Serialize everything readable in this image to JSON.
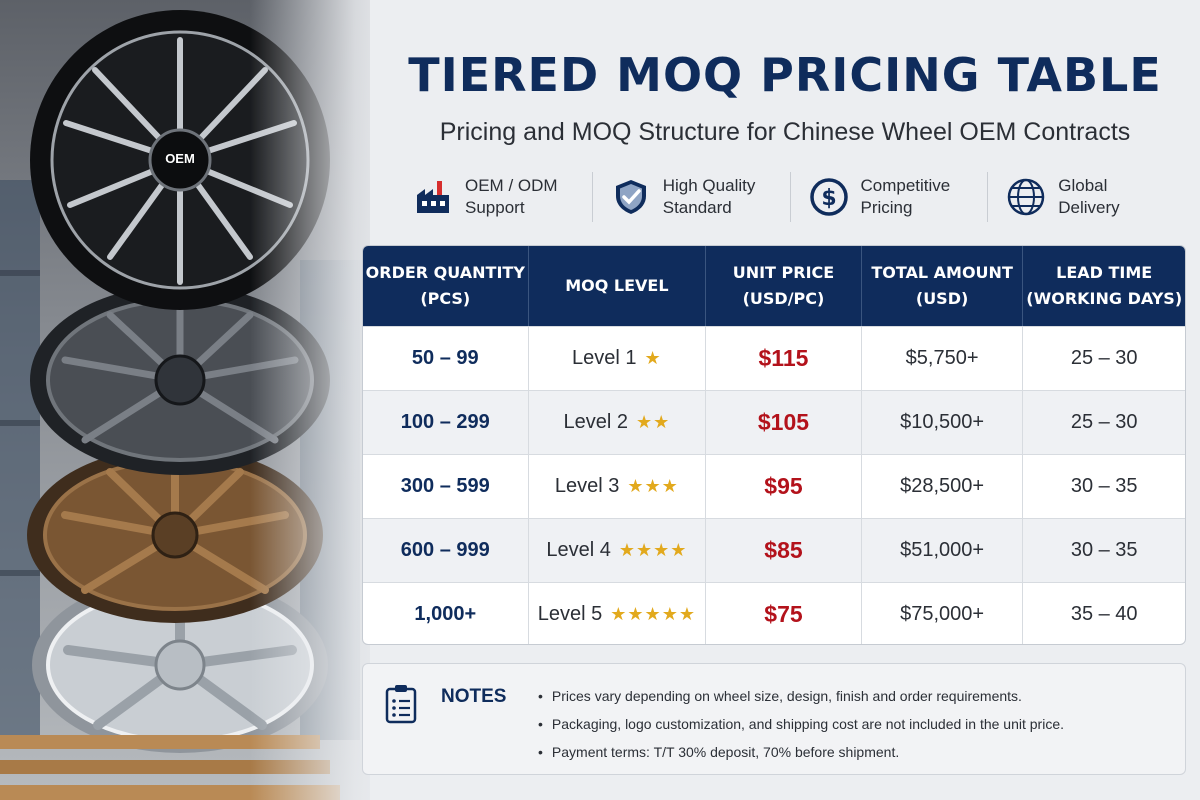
{
  "title": "TIERED MOQ PRICING TABLE",
  "subtitle": "Pricing and MOQ Structure for Chinese Wheel OEM Contracts",
  "wheel_badge": "OEM",
  "features": [
    {
      "icon": "factory-icon",
      "line1": "OEM / ODM",
      "line2": "Support"
    },
    {
      "icon": "shield-check-icon",
      "line1": "High Quality",
      "line2": "Standard"
    },
    {
      "icon": "dollar-coin-icon",
      "line1": "Competitive",
      "line2": "Pricing"
    },
    {
      "icon": "globe-icon",
      "line1": "Global",
      "line2": "Delivery"
    }
  ],
  "table": {
    "headers": [
      "ORDER QUANTITY\n(PCS)",
      "MOQ LEVEL",
      "UNIT PRICE\n(USD/PC)",
      "TOTAL AMOUNT\n(USD)",
      "LEAD TIME\n(WORKING DAYS)"
    ],
    "rows": [
      {
        "qty": "50 – 99",
        "level": "Level 1",
        "stars": "★",
        "price": "$115",
        "total": "$5,750+",
        "lead": "25 – 30"
      },
      {
        "qty": "100 – 299",
        "level": "Level 2",
        "stars": "★★",
        "price": "$105",
        "total": "$10,500+",
        "lead": "25 – 30"
      },
      {
        "qty": "300 – 599",
        "level": "Level 3",
        "stars": "★★★",
        "price": "$95",
        "total": "$28,500+",
        "lead": "30 – 35"
      },
      {
        "qty": "600 – 999",
        "level": "Level 4",
        "stars": "★★★★",
        "price": "$85",
        "total": "$51,000+",
        "lead": "30 – 35"
      },
      {
        "qty": "1,000+",
        "level": "Level 5",
        "stars": "★★★★★",
        "price": "$75",
        "total": "$75,000+",
        "lead": "35 – 40"
      }
    ]
  },
  "notes": {
    "icon": "clipboard-icon",
    "title": "NOTES",
    "items": [
      "Prices vary depending on wheel size, design, finish and order requirements.",
      "Packaging, logo customization, and shipping cost are not included in the unit price.",
      "Payment terms: T/T 30% deposit, 70% before shipment."
    ]
  },
  "colors": {
    "navy": "#0f2c5c",
    "price_red": "#b3121b",
    "star_gold": "#e2a91d",
    "row_alt": "#eff1f4"
  }
}
